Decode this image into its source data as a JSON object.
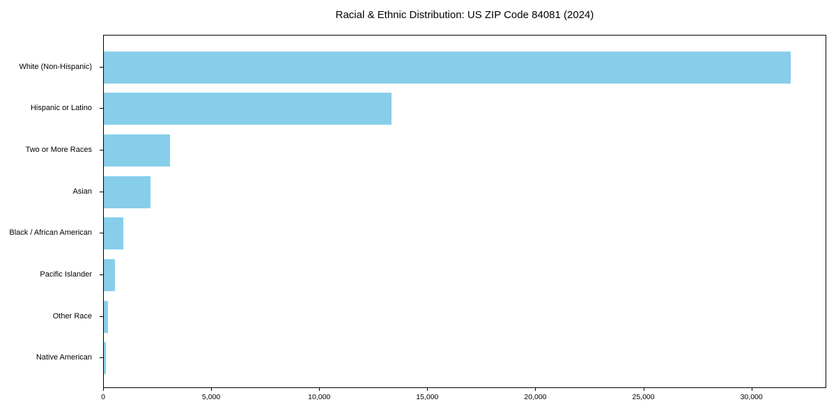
{
  "chart_data": {
    "type": "bar",
    "orientation": "horizontal",
    "title": "Racial & Ethnic Distribution: US ZIP Code 84081 (2024)",
    "categories": [
      "White (Non-Hispanic)",
      "Hispanic or Latino",
      "Two or More Races",
      "Asian",
      "Black / African American",
      "Pacific Islander",
      "Other Race",
      "Native American"
    ],
    "values": [
      31850,
      13340,
      3080,
      2150,
      910,
      520,
      200,
      90
    ],
    "xlabel": "",
    "ylabel": "",
    "xlim": [
      0,
      33460
    ],
    "x_ticks": [
      0,
      5000,
      10000,
      15000,
      20000,
      25000,
      30000
    ],
    "x_tick_labels": [
      "0",
      "5,000",
      "10,000",
      "15,000",
      "20,000",
      "25,000",
      "30,000"
    ],
    "bar_color": "#87CEEB",
    "spine_color": "#000000",
    "grid": false,
    "legend_position": "none"
  }
}
